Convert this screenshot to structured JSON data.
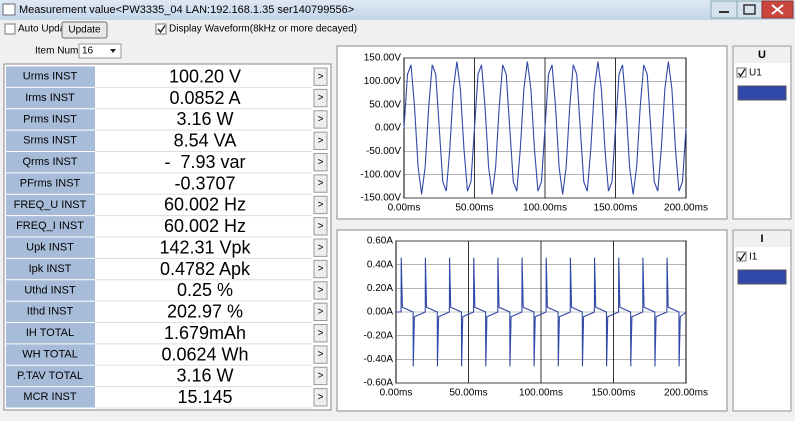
{
  "window": {
    "title": "Measurement value<PW3335_04 LAN:192.168.1.35 ser140799556>"
  },
  "controls": {
    "auto_update": "Auto Update",
    "update_button": "Update",
    "display_waveform": "Display Waveform(8kHz or more decayed)",
    "item_num_label": "Item Num",
    "item_num_value": "16",
    "row_button": ">"
  },
  "measurements": {
    "rows": [
      [
        "Urms INST",
        "100.20 V"
      ],
      [
        "Irms INST",
        "0.0852 A"
      ],
      [
        "Prms INST",
        "3.16 W"
      ],
      [
        "Srms INST",
        "8.54 VA"
      ],
      [
        "Qrms INST",
        "-  7.93 var"
      ],
      [
        "PFrms INST",
        "-0.3707"
      ],
      [
        "FREQ_U INST",
        "60.002 Hz"
      ],
      [
        "FREQ_I INST",
        "60.002 Hz"
      ],
      [
        "Upk INST",
        "142.31 Vpk"
      ],
      [
        "Ipk INST",
        "0.4782 Apk"
      ],
      [
        "Uthd INST",
        "0.25 %"
      ],
      [
        "Ithd INST",
        "202.97 %"
      ],
      [
        "IH TOTAL",
        "1.679mAh"
      ],
      [
        "WH TOTAL",
        "0.0624 Wh"
      ],
      [
        "P.TAV TOTAL",
        "3.16 W"
      ],
      [
        "MCR INST",
        "15.145"
      ]
    ]
  },
  "chart_data": [
    {
      "type": "line",
      "panel_title": "U",
      "grid": true,
      "x": [
        0,
        2.5,
        5,
        7.5,
        10,
        12.5,
        15,
        17.5,
        20,
        22.5,
        25,
        27.5,
        30,
        32.5,
        35,
        37.5,
        40,
        42.5,
        45,
        47.5,
        50,
        52.5,
        55,
        57.5,
        60,
        62.5,
        65,
        67.5,
        70,
        72.5,
        75,
        77.5,
        80,
        82.5,
        85,
        87.5,
        90,
        92.5,
        95,
        97.5,
        100,
        102.5,
        105,
        107.5,
        110,
        112.5,
        115,
        117.5,
        120,
        122.5,
        125,
        127.5,
        130,
        132.5,
        135,
        137.5,
        140,
        142.5,
        145,
        147.5,
        150,
        152.5,
        155,
        157.5,
        160,
        162.5,
        165,
        167.5,
        170,
        172.5,
        175,
        177.5,
        180,
        182.5,
        185,
        187.5,
        190,
        192.5,
        195,
        197.5,
        200
      ],
      "series": [
        {
          "name": "U1",
          "color": "#3048a8",
          "values": [
            0,
            115.1,
            135.3,
            44,
            -83.6,
            -142.3,
            -83.6,
            44,
            135.3,
            115.1,
            0,
            -115.1,
            -135.3,
            -44,
            83.6,
            142.3,
            83.6,
            -44,
            -135.3,
            -115.1,
            0,
            115.1,
            135.3,
            44,
            -83.6,
            -142.3,
            -83.6,
            44,
            135.3,
            115.1,
            0,
            -115.1,
            -135.3,
            -44,
            83.6,
            142.3,
            83.6,
            -44,
            -135.3,
            -115.1,
            0,
            115.1,
            135.3,
            44,
            -83.6,
            -142.3,
            -83.6,
            44,
            135.3,
            115.1,
            0,
            -115.1,
            -135.3,
            -44,
            83.6,
            142.3,
            83.6,
            -44,
            -135.3,
            -115.1,
            0,
            115.1,
            135.3,
            44,
            -83.6,
            -142.3,
            -83.6,
            44,
            135.3,
            115.1,
            0,
            -115.1,
            -135.3,
            -44,
            83.6,
            142.3,
            83.6,
            -44,
            -135.3,
            -115.1,
            0
          ]
        }
      ],
      "xlim": [
        0,
        200
      ],
      "ylim": [
        -150,
        150
      ],
      "xticks": [
        {
          "value": 0,
          "label": "0.00ms"
        },
        {
          "value": 50,
          "label": "50.00ms"
        },
        {
          "value": 100,
          "label": "100.00ms"
        },
        {
          "value": 150,
          "label": "150.00ms"
        },
        {
          "value": 200,
          "label": "200.00ms"
        }
      ],
      "yticks": [
        {
          "value": 150,
          "label": "150.00V"
        },
        {
          "value": 100,
          "label": "100.00V"
        },
        {
          "value": 50,
          "label": "50.00V"
        },
        {
          "value": 0,
          "label": "0.00V"
        },
        {
          "value": -50,
          "label": "-50.00V"
        },
        {
          "value": -100,
          "label": "-100.00V"
        },
        {
          "value": -150,
          "label": "-150.00V"
        }
      ]
    },
    {
      "type": "line",
      "panel_title": "I",
      "grid": true,
      "x": [
        0,
        3.5,
        3.6,
        4.4,
        11.8,
        11.9,
        12.7,
        20.17,
        20.27,
        21.07,
        28.47,
        28.57,
        29.37,
        36.83,
        36.93,
        37.73,
        45.13,
        45.23,
        46.03,
        53.5,
        53.6,
        54.4,
        61.8,
        61.9,
        62.7,
        70.17,
        70.27,
        71.07,
        78.47,
        78.57,
        79.37,
        86.83,
        86.93,
        87.73,
        95.13,
        95.23,
        96.03,
        103.5,
        103.6,
        104.4,
        111.8,
        111.9,
        112.7,
        120.17,
        120.27,
        121.07,
        128.47,
        128.57,
        129.37,
        136.83,
        136.93,
        137.73,
        145.13,
        145.23,
        146.03,
        153.5,
        153.6,
        154.4,
        161.8,
        161.9,
        162.7,
        170.17,
        170.27,
        171.07,
        178.47,
        178.57,
        179.37,
        186.83,
        186.93,
        187.73,
        195.13,
        195.23,
        196.03,
        200
      ],
      "series": [
        {
          "name": "I1",
          "color": "#3048a8",
          "values": [
            0,
            0,
            0.46,
            0.04,
            0,
            -0.46,
            -0.04,
            0,
            0.46,
            0.04,
            0,
            -0.46,
            -0.04,
            0,
            0.46,
            0.04,
            0,
            -0.46,
            -0.04,
            0,
            0.46,
            0.04,
            0,
            -0.46,
            -0.04,
            0,
            0.46,
            0.04,
            0,
            -0.46,
            -0.04,
            0,
            0.46,
            0.04,
            0,
            -0.46,
            -0.04,
            0,
            0.46,
            0.04,
            0,
            -0.46,
            -0.04,
            0,
            0.46,
            0.04,
            0,
            -0.46,
            -0.04,
            0,
            0.46,
            0.04,
            0,
            -0.46,
            -0.04,
            0,
            0.46,
            0.04,
            0,
            -0.46,
            -0.04,
            0,
            0.46,
            0.04,
            0,
            -0.46,
            -0.04,
            0,
            0.46,
            0.04,
            0,
            -0.46,
            -0.04,
            0
          ]
        }
      ],
      "xlim": [
        0,
        200
      ],
      "ylim": [
        -0.6,
        0.6
      ],
      "xticks": [
        {
          "value": 0,
          "label": "0.00ms"
        },
        {
          "value": 50,
          "label": "50.00ms"
        },
        {
          "value": 100,
          "label": "100.00ms"
        },
        {
          "value": 150,
          "label": "150.00ms"
        },
        {
          "value": 200,
          "label": "200.00ms"
        }
      ],
      "yticks": [
        {
          "value": 0.6,
          "label": "0.60A"
        },
        {
          "value": 0.4,
          "label": "0.40A"
        },
        {
          "value": 0.2,
          "label": "0.20A"
        },
        {
          "value": 0,
          "label": "0.00A"
        },
        {
          "value": -0.2,
          "label": "-0.20A"
        },
        {
          "value": -0.4,
          "label": "-0.40A"
        },
        {
          "value": -0.6,
          "label": "-0.60A"
        }
      ]
    }
  ]
}
